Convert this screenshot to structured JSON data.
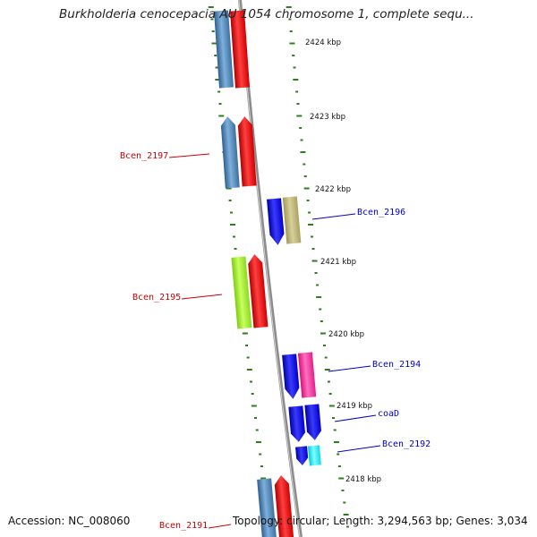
{
  "title": "Burkholderia cenocepacia AU 1054 chromosome 1, complete sequ...",
  "footer": {
    "accession": "Accession: NC_008060",
    "topology": "Topology: circular; Length: 3,294,563 bp; Genes: 3,034"
  },
  "colors": {
    "backbone": "#8c8c8c",
    "tick": "#2e7d1e",
    "label_red": "#cc0000",
    "label_blue": "#0000cc"
  },
  "kbp_markers": [
    "2424 kbp",
    "2423 kbp",
    "2422 kbp",
    "2421 kbp",
    "2420 kbp",
    "2419 kbp",
    "2418 kbp"
  ],
  "gene_labels": [
    {
      "name": "Bcen_2197",
      "color": "#cc0000"
    },
    {
      "name": "Bcen_2196",
      "color": "#0000cc"
    },
    {
      "name": "Bcen_2195",
      "color": "#cc0000"
    },
    {
      "name": "Bcen_2194",
      "color": "#0000cc"
    },
    {
      "name": "coaD",
      "color": "#0000cc"
    },
    {
      "name": "Bcen_2192",
      "color": "#0000cc"
    },
    {
      "name": "Bcen_2191",
      "color": "#cc0000"
    }
  ]
}
